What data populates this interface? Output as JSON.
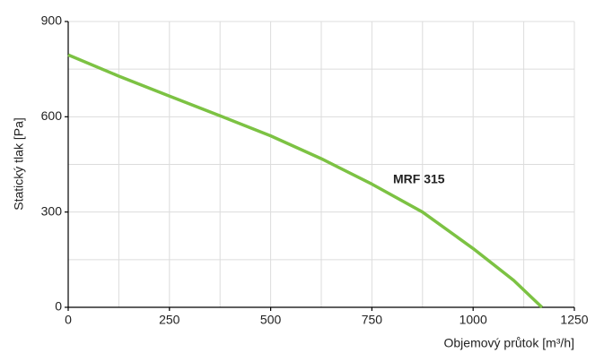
{
  "chart_data": {
    "type": "line",
    "xlabel": "Objemový průtok [m³/h]",
    "ylabel": "Statický tlak [Pa]",
    "annotation": "MRF 315",
    "x": [
      0,
      125,
      250,
      375,
      500,
      625,
      750,
      875,
      1000,
      1100,
      1170
    ],
    "series": [
      {
        "name": "MRF 315",
        "color": "#7cc243",
        "values": [
          795,
          728,
          665,
          603,
          540,
          468,
          388,
          300,
          185,
          85,
          0
        ]
      }
    ],
    "xlim": [
      0,
      1250
    ],
    "xticks": [
      0,
      250,
      500,
      750,
      1000,
      1250
    ],
    "ylim": [
      0,
      900
    ],
    "yticks": [
      0,
      300,
      600,
      900
    ],
    "xgrid": [
      125,
      250,
      375,
      500,
      625,
      750,
      875,
      1000,
      1125,
      1250
    ],
    "ygrid": [
      150,
      300,
      450,
      600,
      750,
      900
    ],
    "grid": true
  }
}
